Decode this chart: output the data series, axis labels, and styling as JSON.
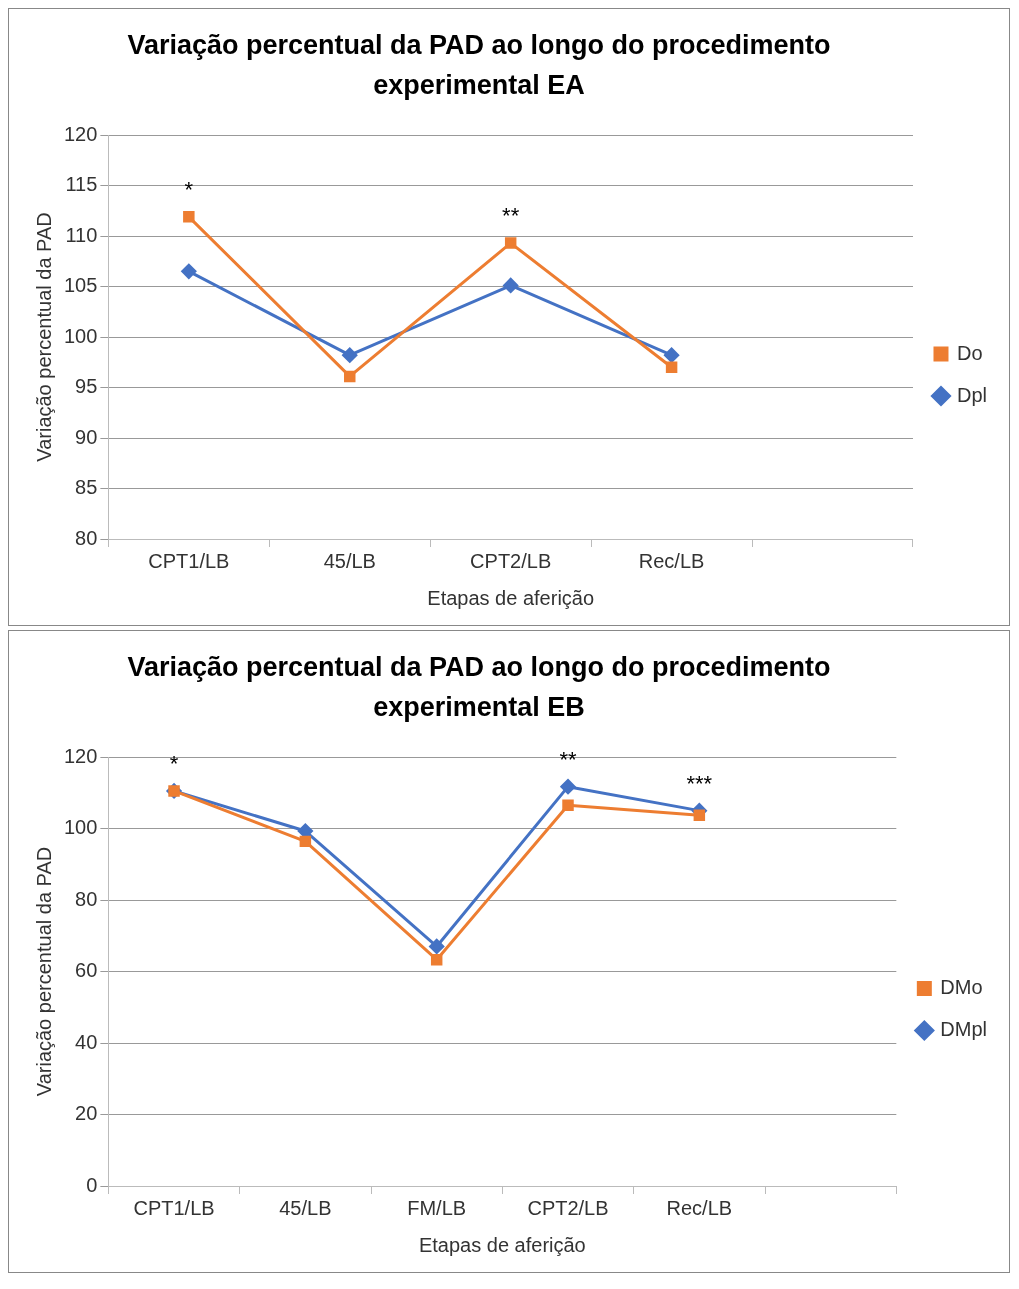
{
  "chart_data": [
    {
      "type": "line",
      "title": "Variação percentual da PAD ao longo do procedimento experimental EA",
      "xlabel": "Etapas de aferição",
      "ylabel": "Variação percentual da PAD",
      "categories": [
        "CPT1/LB",
        "45/LB",
        "CPT2/LB",
        "Rec/LB",
        null
      ],
      "ylim": [
        80,
        120
      ],
      "yticks": [
        80,
        85,
        90,
        95,
        100,
        105,
        110,
        115,
        120
      ],
      "grid": "y",
      "legend": "right",
      "series": [
        {
          "name": "Dpl",
          "color": "#4472c4",
          "marker": "diamond",
          "values": [
            106.5,
            98.2,
            105.1,
            98.2,
            null
          ]
        },
        {
          "name": "Do",
          "color": "#ed7d31",
          "marker": "square",
          "values": [
            111.9,
            96.1,
            109.3,
            97.0,
            null
          ]
        }
      ],
      "annotations": [
        {
          "text": "*",
          "x": "CPT1/LB",
          "y": 111.9
        },
        {
          "text": "**",
          "x": "CPT2/LB",
          "y": 109.3
        }
      ]
    },
    {
      "type": "line",
      "title": "Variação percentual da PAD ao longo do procedimento experimental EB",
      "xlabel": "Etapas de aferição",
      "ylabel": "Variação percentual da PAD",
      "categories": [
        "CPT1/LB",
        "45/LB",
        "FM/LB",
        "CPT2/LB",
        "Rec/LB",
        null
      ],
      "ylim": [
        0,
        120
      ],
      "yticks": [
        0,
        20,
        40,
        60,
        80,
        100,
        120
      ],
      "grid": "y",
      "legend": "right",
      "series": [
        {
          "name": "DMpl",
          "color": "#4472c4",
          "marker": "diamond",
          "values": [
            110.5,
            99.3,
            67.0,
            111.7,
            105.0,
            null
          ]
        },
        {
          "name": "DMo",
          "color": "#ed7d31",
          "marker": "square",
          "values": [
            110.5,
            96.4,
            63.3,
            106.5,
            103.7,
            null
          ]
        }
      ],
      "annotations": [
        {
          "text": "*",
          "x": "CPT1/LB",
          "y": 110.5
        },
        {
          "text": "**",
          "x": "CPT2/LB",
          "y": 111.7
        },
        {
          "text": "***",
          "x": "Rec/LB",
          "y": 105.0
        }
      ]
    }
  ]
}
